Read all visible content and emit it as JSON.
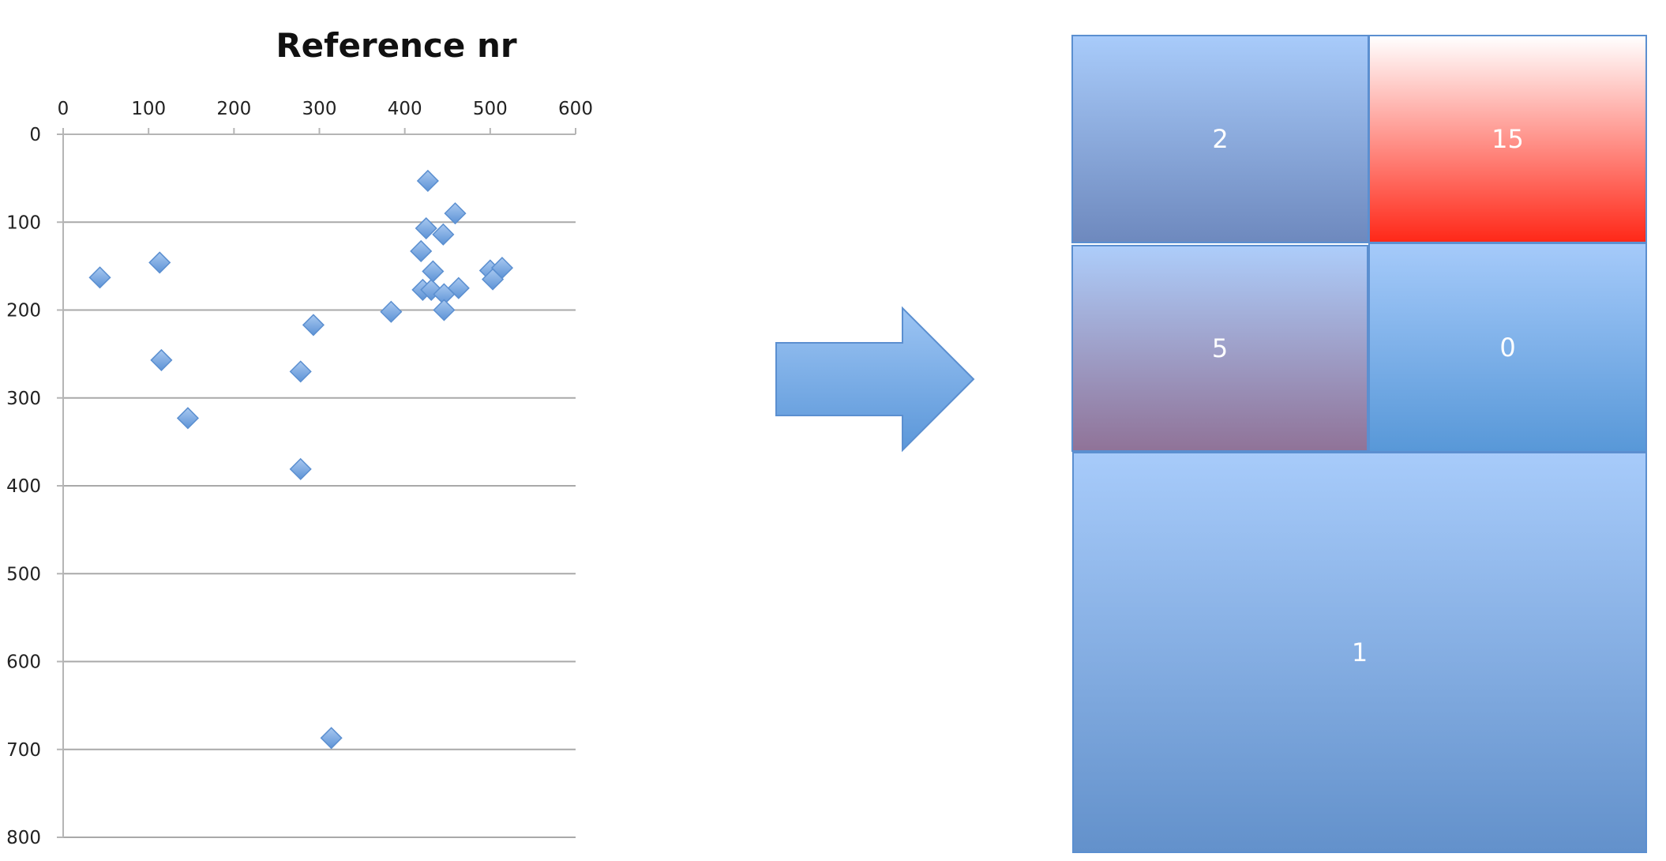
{
  "chart_data": [
    {
      "type": "scatter",
      "title": "Reference nr",
      "xlabel": "",
      "ylabel": "",
      "xlim": [
        0,
        600
      ],
      "ylim": [
        0,
        800
      ],
      "y_inverted": true,
      "x_axis_position": "top",
      "grid": "horizontal",
      "xticks": [
        "0",
        "100",
        "200",
        "300",
        "400",
        "500",
        "600"
      ],
      "yticks": [
        "0",
        "100",
        "200",
        "300",
        "400",
        "500",
        "600",
        "700",
        "800"
      ],
      "marker": "diamond",
      "color": "#7aa9e0",
      "points": [
        {
          "x": 43,
          "y": 163
        },
        {
          "x": 113,
          "y": 146
        },
        {
          "x": 115,
          "y": 257
        },
        {
          "x": 146,
          "y": 323
        },
        {
          "x": 278,
          "y": 270
        },
        {
          "x": 278,
          "y": 381
        },
        {
          "x": 293,
          "y": 217
        },
        {
          "x": 314,
          "y": 687
        },
        {
          "x": 384,
          "y": 202
        },
        {
          "x": 419,
          "y": 133
        },
        {
          "x": 421,
          "y": 177
        },
        {
          "x": 425,
          "y": 107
        },
        {
          "x": 427,
          "y": 53
        },
        {
          "x": 431,
          "y": 177
        },
        {
          "x": 433,
          "y": 156
        },
        {
          "x": 445,
          "y": 114
        },
        {
          "x": 446,
          "y": 182
        },
        {
          "x": 446,
          "y": 200
        },
        {
          "x": 459,
          "y": 90
        },
        {
          "x": 463,
          "y": 175
        },
        {
          "x": 500,
          "y": 155
        },
        {
          "x": 503,
          "y": 165
        },
        {
          "x": 514,
          "y": 152
        }
      ]
    },
    {
      "type": "heatmap",
      "title": "",
      "cells": [
        {
          "label": "2",
          "value": 2,
          "grid_position": "top-left"
        },
        {
          "label": "15",
          "value": 15,
          "grid_position": "top-right"
        },
        {
          "label": "5",
          "value": 5,
          "grid_position": "middle-left"
        },
        {
          "label": "0",
          "value": 0,
          "grid_position": "middle-right"
        },
        {
          "label": "1",
          "value": 1,
          "grid_position": "bottom-span"
        }
      ]
    }
  ],
  "colors": {
    "marker": "#7aa9e0",
    "cold": "#5b9bd8",
    "hot": "#ff2a1a",
    "arrow": "#6aa2e0"
  }
}
